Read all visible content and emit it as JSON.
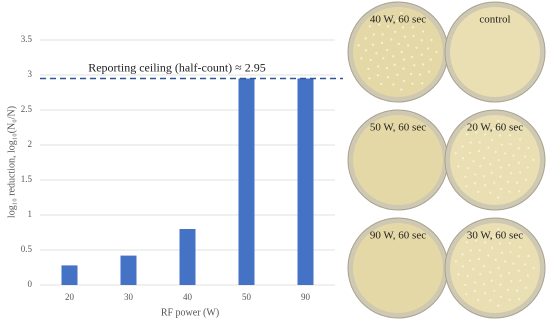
{
  "chart_data": {
    "type": "bar",
    "categories": [
      "20",
      "30",
      "40",
      "50",
      "90"
    ],
    "values": [
      0.28,
      0.42,
      0.8,
      2.95,
      2.95
    ],
    "color": "#4472c4",
    "ylim": [
      0,
      3.5
    ],
    "yticks": [
      0,
      0.5,
      1,
      1.5,
      2,
      2.5,
      3,
      3.5
    ],
    "grid": true,
    "x_label": "RF power (W)",
    "y_label": "log₁₀ reduction, log₁₀(N₀/N)",
    "reference_line": {
      "value": 2.95,
      "label": "Reporting ceiling (half-count) ≈ 2.95",
      "color": "#2f5597"
    }
  },
  "plates": [
    {
      "label": "40 W, 60 sec"
    },
    {
      "label": "control"
    },
    {
      "label": "50 W, 60 sec"
    },
    {
      "label": "20 W, 60 sec"
    },
    {
      "label": "90 W, 60 sec"
    },
    {
      "label": "30 W, 60 sec"
    }
  ]
}
